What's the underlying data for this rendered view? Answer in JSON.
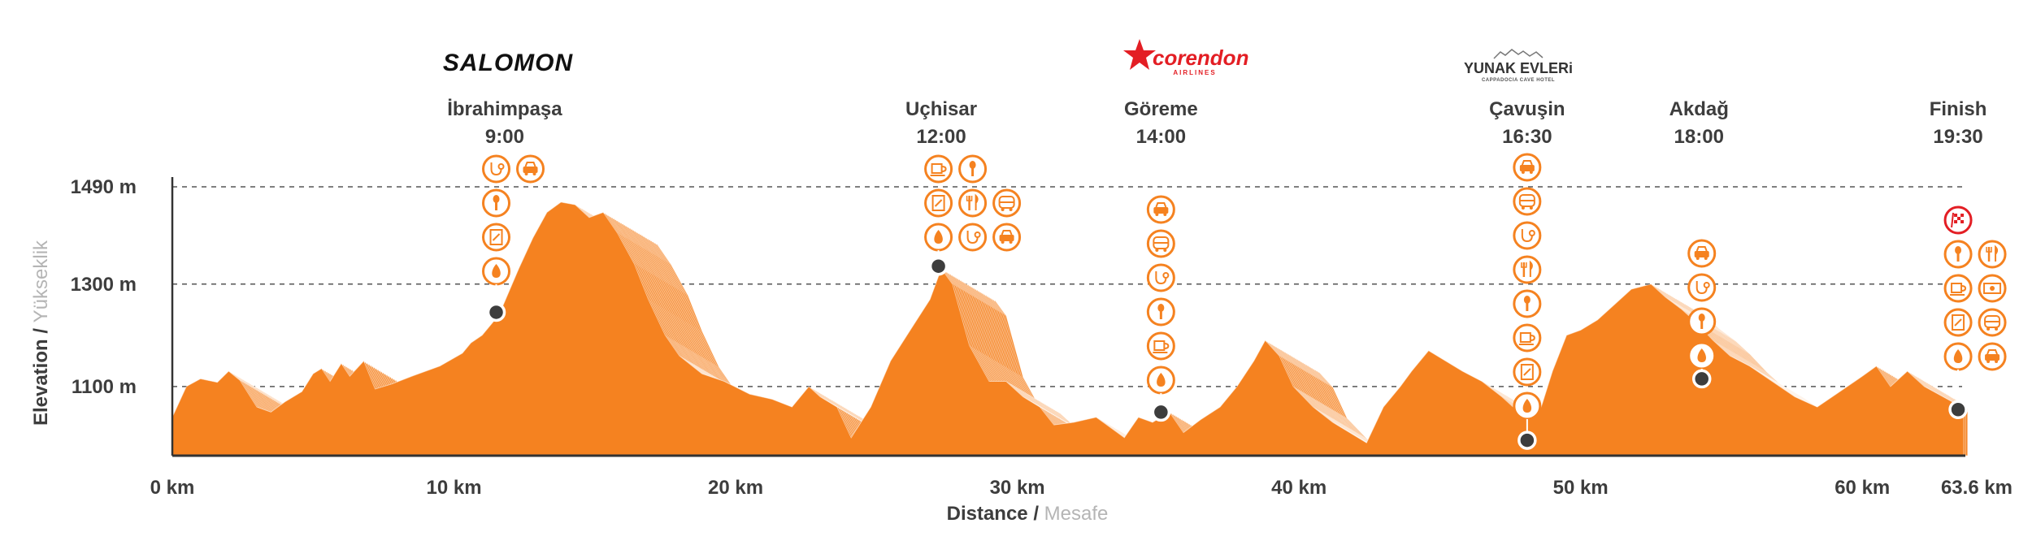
{
  "colors": {
    "accent": "#f58220",
    "dark": "#3d3d3d",
    "muted": "#b5b5b5",
    "finish_red": "#e31e24",
    "logo_red": "#e31e24"
  },
  "sponsors": [
    {
      "name": "SALOMON",
      "logo": "salomon-logo"
    },
    {
      "name": "corendon",
      "sub": "AIRLINES",
      "logo": "corendon-logo"
    },
    {
      "name": "YUNAK EVLERi",
      "sub": "CAPPADOCIA CAVE HOTEL",
      "logo": "yunak-evleri-logo"
    }
  ],
  "chart_data": {
    "type": "area",
    "xlabel": {
      "main": "Distance",
      "sep": " / ",
      "alt": "Mesafe"
    },
    "ylabel": {
      "main": "Elevation",
      "sep": " / ",
      "alt": "Yükseklik"
    },
    "xlim": [
      0,
      63.6
    ],
    "ylim": [
      965,
      1490
    ],
    "x_ticks": [
      {
        "value": 0,
        "label": "0 km"
      },
      {
        "value": 10,
        "label": "10 km"
      },
      {
        "value": 20,
        "label": "20 km"
      },
      {
        "value": 30,
        "label": "30 km"
      },
      {
        "value": 40,
        "label": "40 km"
      },
      {
        "value": 50,
        "label": "50 km"
      },
      {
        "value": 60,
        "label": "60 km"
      },
      {
        "value": 63.6,
        "label": "63.6 km"
      }
    ],
    "y_ticks": [
      {
        "value": 1490,
        "label": "1490 m"
      },
      {
        "value": 1300,
        "label": "1300 m"
      },
      {
        "value": 1100,
        "label": "1100 m"
      }
    ],
    "grid": "dashed horizontal at tick values",
    "profile": [
      [
        0,
        1040
      ],
      [
        0.5,
        1100
      ],
      [
        1,
        1115
      ],
      [
        1.6,
        1108
      ],
      [
        2,
        1130
      ],
      [
        2.4,
        1112
      ],
      [
        3,
        1060
      ],
      [
        3.5,
        1050
      ],
      [
        4,
        1070
      ],
      [
        4.6,
        1090
      ],
      [
        5,
        1125
      ],
      [
        5.3,
        1135
      ],
      [
        5.6,
        1110
      ],
      [
        6,
        1145
      ],
      [
        6.3,
        1120
      ],
      [
        6.8,
        1150
      ],
      [
        7.2,
        1095
      ],
      [
        7.8,
        1105
      ],
      [
        8.5,
        1120
      ],
      [
        9.5,
        1140
      ],
      [
        10.3,
        1165
      ],
      [
        10.6,
        1185
      ],
      [
        11,
        1200
      ],
      [
        11.6,
        1240
      ],
      [
        12.3,
        1330
      ],
      [
        12.8,
        1390
      ],
      [
        13.3,
        1440
      ],
      [
        13.8,
        1460
      ],
      [
        14.3,
        1455
      ],
      [
        14.8,
        1430
      ],
      [
        15.3,
        1440
      ],
      [
        15.8,
        1400
      ],
      [
        16.4,
        1340
      ],
      [
        16.9,
        1270
      ],
      [
        17.5,
        1200
      ],
      [
        18,
        1160
      ],
      [
        18.8,
        1125
      ],
      [
        19.6,
        1110
      ],
      [
        20.5,
        1085
      ],
      [
        21.3,
        1075
      ],
      [
        22,
        1060
      ],
      [
        22.6,
        1100
      ],
      [
        23,
        1080
      ],
      [
        23.6,
        1060
      ],
      [
        24.1,
        1000
      ],
      [
        24.8,
        1060
      ],
      [
        25.5,
        1150
      ],
      [
        26.2,
        1210
      ],
      [
        26.9,
        1270
      ],
      [
        27.3,
        1330
      ],
      [
        27.7,
        1300
      ],
      [
        28.3,
        1180
      ],
      [
        29,
        1110
      ],
      [
        29.6,
        1110
      ],
      [
        30.2,
        1080
      ],
      [
        30.8,
        1060
      ],
      [
        31.3,
        1025
      ],
      [
        32,
        1030
      ],
      [
        32.8,
        1040
      ],
      [
        33.3,
        1020
      ],
      [
        33.8,
        1000
      ],
      [
        34.3,
        1040
      ],
      [
        34.8,
        1030
      ],
      [
        35.4,
        1050
      ],
      [
        35.9,
        1010
      ],
      [
        36.5,
        1035
      ],
      [
        37.2,
        1060
      ],
      [
        37.8,
        1100
      ],
      [
        38.4,
        1150
      ],
      [
        38.8,
        1190
      ],
      [
        39.3,
        1160
      ],
      [
        39.8,
        1100
      ],
      [
        40.5,
        1060
      ],
      [
        41.2,
        1030
      ],
      [
        41.8,
        1010
      ],
      [
        42.4,
        990
      ],
      [
        43,
        1060
      ],
      [
        43.6,
        1100
      ],
      [
        44,
        1130
      ],
      [
        44.6,
        1170
      ],
      [
        45.2,
        1150
      ],
      [
        45.8,
        1130
      ],
      [
        46.5,
        1110
      ],
      [
        47.2,
        1080
      ],
      [
        47.8,
        1050
      ],
      [
        48.2,
        1040
      ],
      [
        48.6,
        1060
      ],
      [
        49,
        1130
      ],
      [
        49.5,
        1200
      ],
      [
        50,
        1210
      ],
      [
        50.6,
        1230
      ],
      [
        51.2,
        1260
      ],
      [
        51.8,
        1290
      ],
      [
        52.5,
        1300
      ],
      [
        53,
        1275
      ],
      [
        53.6,
        1250
      ],
      [
        54.1,
        1225
      ],
      [
        54.7,
        1190
      ],
      [
        55.3,
        1160
      ],
      [
        56,
        1140
      ],
      [
        56.8,
        1110
      ],
      [
        57.6,
        1080
      ],
      [
        58.4,
        1060
      ],
      [
        59.2,
        1090
      ],
      [
        60,
        1120
      ],
      [
        60.5,
        1140
      ],
      [
        61,
        1100
      ],
      [
        61.6,
        1130
      ],
      [
        62.2,
        1100
      ],
      [
        62.7,
        1085
      ],
      [
        63.2,
        1070
      ],
      [
        63.6,
        1055
      ]
    ],
    "profile_shadow_layers": 30,
    "checkpoints": [
      {
        "name": "İbrahimpaşa",
        "time": "9:00",
        "label_x": 11.8,
        "marker": [
          11.5,
          1245
        ],
        "icons": [
          [
            "stethoscope-icon",
            "car-icon"
          ],
          [
            "pin-icon"
          ],
          [
            "food-icon"
          ],
          [
            "water-drop-icon"
          ]
        ]
      },
      {
        "name": "Uçhisar",
        "time": "12:00",
        "label_x": 27.3,
        "marker": [
          27.2,
          1335
        ],
        "icons": [
          [
            "coffee-icon",
            "pin-icon"
          ],
          [
            "food-icon",
            "cutlery-icon",
            "bus-icon"
          ],
          [
            "water-drop-icon",
            "stethoscope-icon",
            "car-icon"
          ]
        ]
      },
      {
        "name": "Göreme",
        "time": "14:00",
        "label_x": 35.1,
        "marker": [
          35.1,
          1050
        ],
        "icons": [
          [
            "car-icon"
          ],
          [
            "bus-icon"
          ],
          [
            "stethoscope-icon"
          ],
          [
            "pin-icon"
          ],
          [
            "coffee-icon"
          ],
          [
            "water-drop-icon"
          ]
        ]
      },
      {
        "name": "Çavuşin",
        "time": "16:30",
        "label_x": 48.1,
        "marker": [
          48.1,
          995
        ],
        "icons": [
          [
            "car-icon"
          ],
          [
            "bus-icon"
          ],
          [
            "stethoscope-icon"
          ],
          [
            "cutlery-icon"
          ],
          [
            "pin-icon"
          ],
          [
            "coffee-icon"
          ],
          [
            "food-icon"
          ],
          [
            "water-drop-icon"
          ]
        ]
      },
      {
        "name": "Akdağ",
        "time": "18:00",
        "label_x": 54.2,
        "marker": [
          54.3,
          1115
        ],
        "icons": [
          [
            "car-icon"
          ],
          [
            "stethoscope-icon"
          ],
          [
            "pin-icon"
          ],
          [
            "water-drop-icon"
          ]
        ]
      },
      {
        "name": "Finish",
        "time": "19:30",
        "label_x": 63.4,
        "marker": [
          63.4,
          1055
        ],
        "icons": [
          [
            "finish-flag-icon"
          ],
          [
            "pin-icon",
            "cutlery-icon"
          ],
          [
            "coffee-icon",
            "cash-icon"
          ],
          [
            "food-icon",
            "bus-icon"
          ],
          [
            "water-drop-icon",
            "car-icon"
          ]
        ]
      }
    ]
  }
}
